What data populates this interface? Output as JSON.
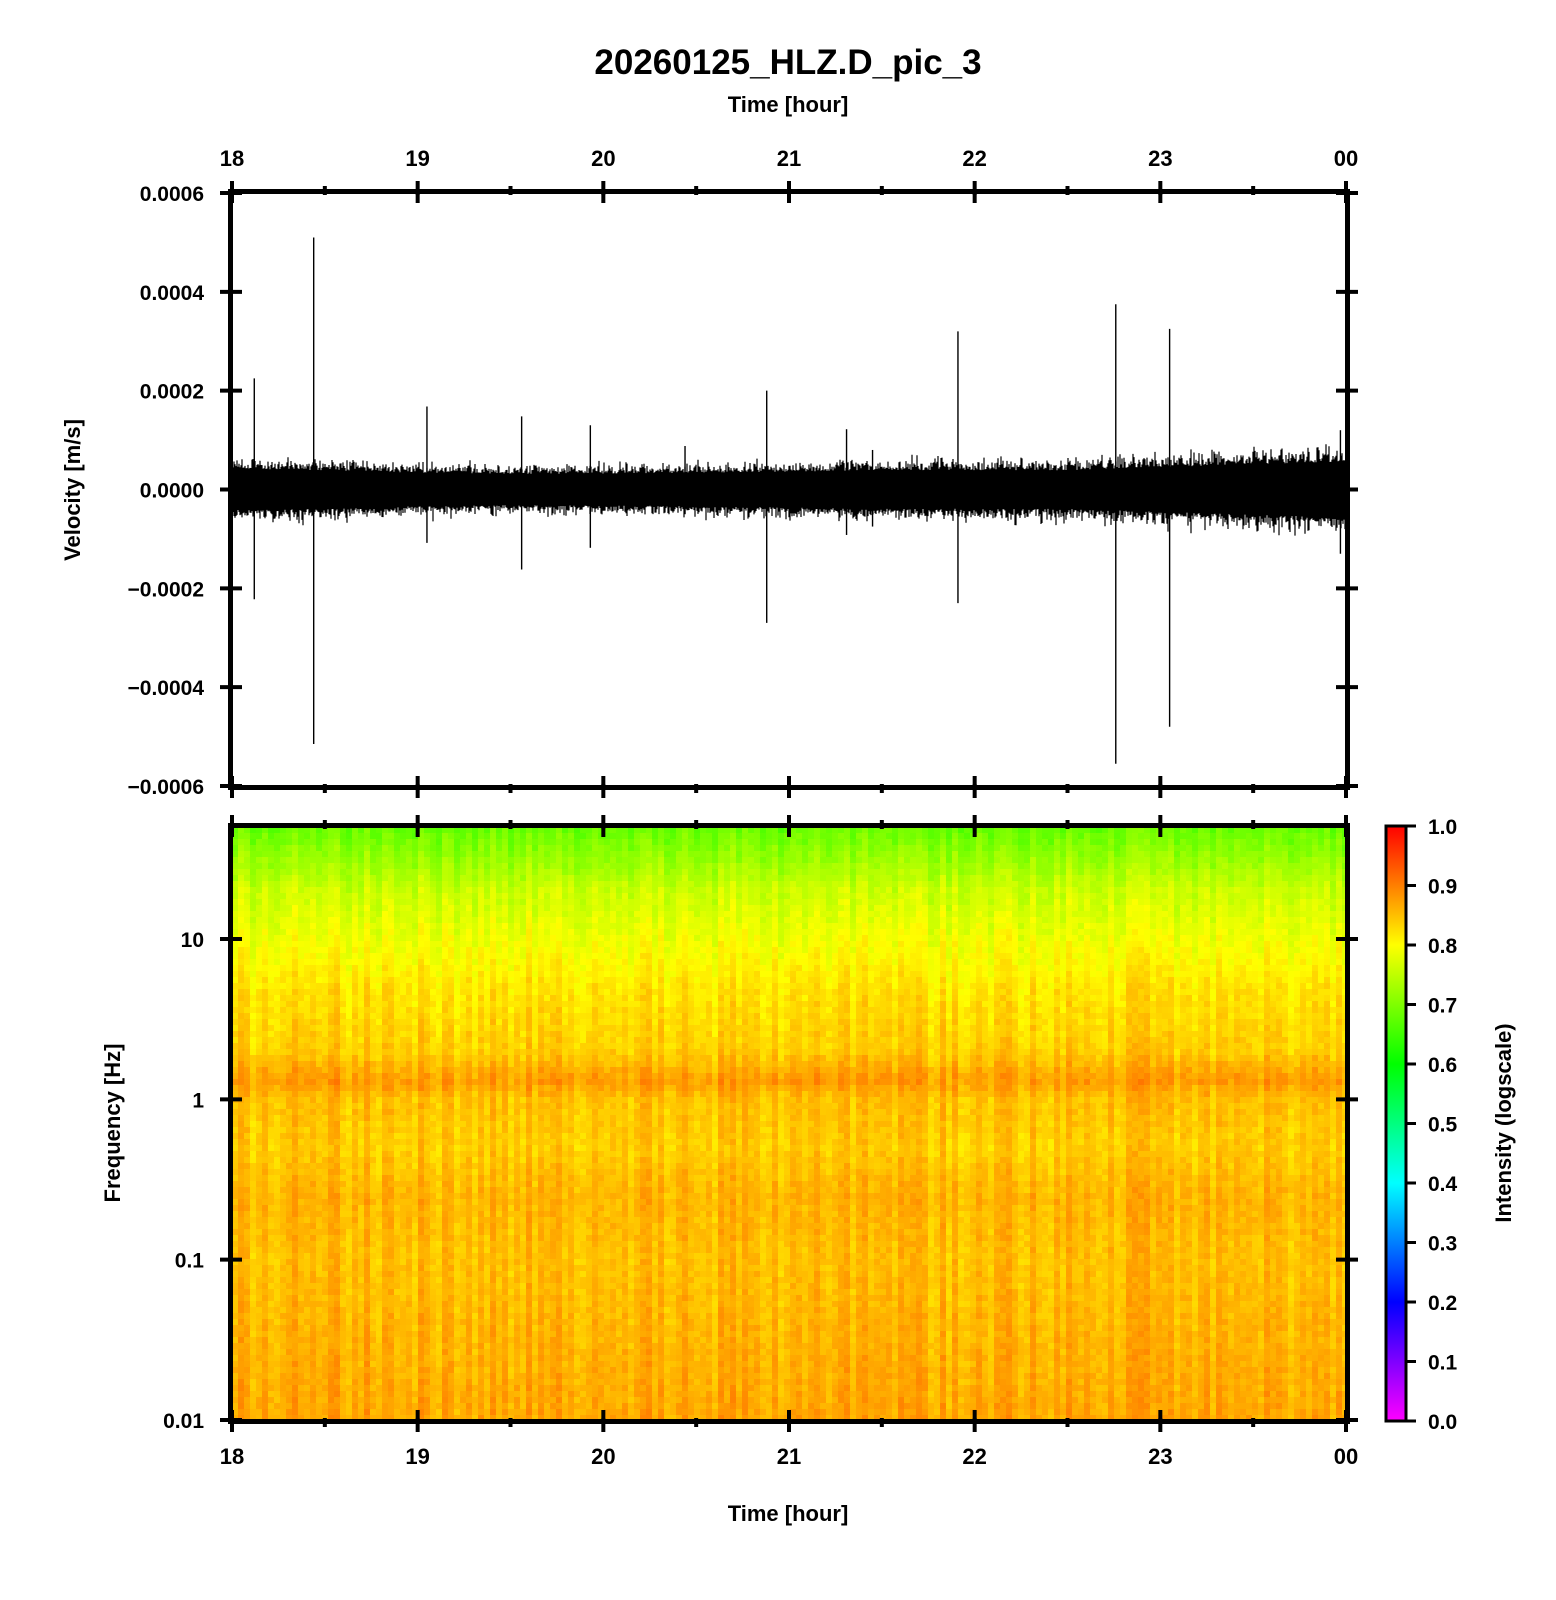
{
  "title": "20260125_HLZ.D_pic_3",
  "top_time_label": "Time [hour]",
  "bottom_time_label": "Time [hour]",
  "colors": {
    "frame": "#000000",
    "trace": "#000000"
  },
  "chart_data": [
    {
      "type": "line",
      "name": "waveform",
      "xlabel": "Time [hour]",
      "ylabel": "Velocity [m/s]",
      "x_ticks": [
        "18",
        "19",
        "20",
        "21",
        "22",
        "23",
        "00"
      ],
      "xlim_hours": [
        18,
        24
      ],
      "ylim": [
        -0.0006,
        0.0006
      ],
      "y_ticks": [
        "0.0006",
        "0.0004",
        "0.0002",
        "0.0000",
        "−0.0002",
        "−0.0004",
        "−0.0006"
      ],
      "noise_envelope": {
        "hours": [
          18.0,
          18.5,
          19.0,
          19.5,
          20.0,
          20.5,
          21.0,
          21.5,
          22.0,
          22.5,
          23.0,
          23.5,
          24.0
        ],
        "amplitude": [
          5.5e-05,
          5.2e-05,
          4.5e-05,
          4.2e-05,
          4.3e-05,
          4.5e-05,
          4.8e-05,
          5.2e-05,
          5.2e-05,
          5.2e-05,
          6e-05,
          6.8e-05,
          7.5e-05
        ]
      },
      "spikes": [
        {
          "hour": 18.12,
          "max": 0.000225,
          "min": -0.000222
        },
        {
          "hour": 18.44,
          "max": 0.00051,
          "min": -0.000515
        },
        {
          "hour": 19.05,
          "max": 0.000168,
          "min": -0.000108
        },
        {
          "hour": 19.56,
          "max": 0.000148,
          "min": -0.000162
        },
        {
          "hour": 19.93,
          "max": 0.00013,
          "min": -0.000118
        },
        {
          "hour": 20.44,
          "max": 8.8e-05,
          "min": -5e-05
        },
        {
          "hour": 20.88,
          "max": 0.0002,
          "min": -0.00027
        },
        {
          "hour": 21.31,
          "max": 0.000122,
          "min": -9.2e-05
        },
        {
          "hour": 21.45,
          "max": 8e-05,
          "min": -7.5e-05
        },
        {
          "hour": 21.91,
          "max": 0.00032,
          "min": -0.00023
        },
        {
          "hour": 22.76,
          "max": 0.000375,
          "min": -0.000555
        },
        {
          "hour": 23.05,
          "max": 0.000325,
          "min": -0.00048
        },
        {
          "hour": 23.97,
          "max": 0.00012,
          "min": -0.00013
        }
      ]
    },
    {
      "type": "heatmap",
      "name": "spectrogram",
      "xlabel": "Time [hour]",
      "ylabel": "Frequency [Hz]",
      "x_ticks": [
        "18",
        "19",
        "20",
        "21",
        "22",
        "23",
        "00"
      ],
      "y_scale": "log",
      "ylim_hz": [
        0.01,
        50
      ],
      "y_ticks": [
        {
          "hz": 10,
          "label": "10"
        },
        {
          "hz": 1,
          "label": "1"
        },
        {
          "hz": 0.1,
          "label": "0.1"
        },
        {
          "hz": 0.01,
          "label": "0.01"
        }
      ],
      "intensity_profile": {
        "hz": [
          50,
          20,
          10,
          5,
          2,
          1.3,
          1,
          0.5,
          0.25,
          0.1,
          0.03,
          0.01
        ],
        "value": [
          0.68,
          0.76,
          0.79,
          0.82,
          0.84,
          0.88,
          0.85,
          0.84,
          0.86,
          0.85,
          0.86,
          0.87
        ]
      },
      "colorbar": {
        "label": "Intensity (logscale)",
        "range": [
          0.0,
          1.0
        ],
        "ticks": [
          "1.0",
          "0.9",
          "0.8",
          "0.7",
          "0.6",
          "0.5",
          "0.4",
          "0.3",
          "0.2",
          "0.1",
          "0.0"
        ],
        "colormap": [
          "#ff00ff",
          "#7f00ff",
          "#0000ff",
          "#007fff",
          "#00ffff",
          "#00ff7f",
          "#00ff00",
          "#7fff00",
          "#ffff00",
          "#ff7f00",
          "#ff0000"
        ]
      }
    }
  ]
}
